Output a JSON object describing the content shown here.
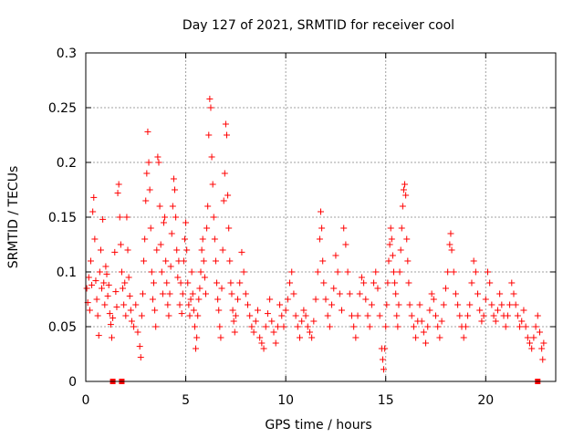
{
  "chart_data": {
    "type": "scatter",
    "title": "Day 127 of 2021, SRMTID for receiver cool",
    "xlabel": "GPS time / hours",
    "ylabel": "SRMTID / TECUs",
    "xlim": [
      0,
      23.5
    ],
    "ylim": [
      0,
      0.3
    ],
    "grid": true,
    "marker": "+",
    "color": "#ff0000",
    "x_ticks": [
      0,
      5,
      10,
      15,
      20
    ],
    "x_tick_labels": [
      "0",
      "5",
      "10",
      "15",
      "20"
    ],
    "y_ticks": [
      0,
      0.05,
      0.1,
      0.15,
      0.2,
      0.25,
      0.3
    ],
    "y_tick_labels": [
      "0",
      "0.05",
      "0.1",
      "0.15",
      "0.2",
      "0.25",
      "0.3"
    ],
    "zero_markers": [
      1.35,
      1.8,
      22.6
    ],
    "series": [
      {
        "name": "SRMTID",
        "points": [
          [
            0.05,
            0.085
          ],
          [
            0.1,
            0.072
          ],
          [
            0.15,
            0.095
          ],
          [
            0.2,
            0.065
          ],
          [
            0.25,
            0.11
          ],
          [
            0.3,
            0.088
          ],
          [
            0.35,
            0.155
          ],
          [
            0.4,
            0.168
          ],
          [
            0.45,
            0.13
          ],
          [
            0.5,
            0.092
          ],
          [
            0.55,
            0.075
          ],
          [
            0.6,
            0.06
          ],
          [
            0.65,
            0.042
          ],
          [
            0.7,
            0.1
          ],
          [
            0.75,
            0.12
          ],
          [
            0.8,
            0.085
          ],
          [
            0.85,
            0.148
          ],
          [
            0.9,
            0.09
          ],
          [
            0.95,
            0.07
          ],
          [
            1.0,
            0.105
          ],
          [
            1.05,
            0.098
          ],
          [
            1.1,
            0.078
          ],
          [
            1.15,
            0.088
          ],
          [
            1.2,
            0.062
          ],
          [
            1.25,
            0.052
          ],
          [
            1.3,
            0.04
          ],
          [
            1.35,
            0.058
          ],
          [
            1.45,
            0.118
          ],
          [
            1.5,
            0.082
          ],
          [
            1.55,
            0.068
          ],
          [
            1.6,
            0.172
          ],
          [
            1.65,
            0.18
          ],
          [
            1.7,
            0.15
          ],
          [
            1.75,
            0.125
          ],
          [
            1.8,
            0.1
          ],
          [
            1.85,
            0.085
          ],
          [
            1.9,
            0.07
          ],
          [
            1.95,
            0.09
          ],
          [
            2.0,
            0.06
          ],
          [
            2.05,
            0.15
          ],
          [
            2.1,
            0.12
          ],
          [
            2.15,
            0.095
          ],
          [
            2.2,
            0.078
          ],
          [
            2.25,
            0.065
          ],
          [
            2.3,
            0.055
          ],
          [
            2.4,
            0.05
          ],
          [
            2.5,
            0.07
          ],
          [
            2.6,
            0.045
          ],
          [
            2.7,
            0.032
          ],
          [
            2.75,
            0.022
          ],
          [
            2.8,
            0.06
          ],
          [
            2.85,
            0.08
          ],
          [
            2.9,
            0.11
          ],
          [
            2.95,
            0.13
          ],
          [
            3.0,
            0.165
          ],
          [
            3.05,
            0.19
          ],
          [
            3.1,
            0.228
          ],
          [
            3.15,
            0.2
          ],
          [
            3.2,
            0.175
          ],
          [
            3.25,
            0.14
          ],
          [
            3.3,
            0.1
          ],
          [
            3.35,
            0.075
          ],
          [
            3.4,
            0.09
          ],
          [
            3.45,
            0.065
          ],
          [
            3.5,
            0.05
          ],
          [
            3.55,
            0.12
          ],
          [
            3.6,
            0.205
          ],
          [
            3.65,
            0.2
          ],
          [
            3.7,
            0.16
          ],
          [
            3.75,
            0.125
          ],
          [
            3.8,
            0.1
          ],
          [
            3.85,
            0.08
          ],
          [
            3.9,
            0.145
          ],
          [
            3.95,
            0.15
          ],
          [
            4.0,
            0.11
          ],
          [
            4.05,
            0.09
          ],
          [
            4.1,
            0.07
          ],
          [
            4.15,
            0.06
          ],
          [
            4.2,
            0.08
          ],
          [
            4.25,
            0.105
          ],
          [
            4.3,
            0.135
          ],
          [
            4.35,
            0.16
          ],
          [
            4.4,
            0.185
          ],
          [
            4.45,
            0.175
          ],
          [
            4.5,
            0.15
          ],
          [
            4.55,
            0.12
          ],
          [
            4.6,
            0.095
          ],
          [
            4.65,
            0.11
          ],
          [
            4.7,
            0.07
          ],
          [
            4.75,
            0.09
          ],
          [
            4.8,
            0.062
          ],
          [
            4.85,
            0.08
          ],
          [
            4.9,
            0.11
          ],
          [
            4.95,
            0.13
          ],
          [
            5.0,
            0.145
          ],
          [
            5.05,
            0.12
          ],
          [
            5.1,
            0.09
          ],
          [
            5.15,
            0.07
          ],
          [
            5.2,
            0.06
          ],
          [
            5.25,
            0.075
          ],
          [
            5.3,
            0.1
          ],
          [
            5.35,
            0.08
          ],
          [
            5.4,
            0.065
          ],
          [
            5.45,
            0.05
          ],
          [
            5.5,
            0.03
          ],
          [
            5.55,
            0.04
          ],
          [
            5.6,
            0.06
          ],
          [
            5.65,
            0.075
          ],
          [
            5.7,
            0.085
          ],
          [
            5.75,
            0.1
          ],
          [
            5.8,
            0.12
          ],
          [
            5.85,
            0.13
          ],
          [
            5.9,
            0.11
          ],
          [
            5.95,
            0.095
          ],
          [
            6.0,
            0.08
          ],
          [
            6.05,
            0.14
          ],
          [
            6.1,
            0.16
          ],
          [
            6.15,
            0.225
          ],
          [
            6.2,
            0.258
          ],
          [
            6.25,
            0.25
          ],
          [
            6.3,
            0.205
          ],
          [
            6.35,
            0.18
          ],
          [
            6.4,
            0.15
          ],
          [
            6.45,
            0.13
          ],
          [
            6.5,
            0.11
          ],
          [
            6.55,
            0.09
          ],
          [
            6.6,
            0.075
          ],
          [
            6.65,
            0.065
          ],
          [
            6.7,
            0.05
          ],
          [
            6.75,
            0.04
          ],
          [
            6.8,
            0.085
          ],
          [
            6.85,
            0.12
          ],
          [
            6.9,
            0.165
          ],
          [
            6.95,
            0.19
          ],
          [
            7.0,
            0.235
          ],
          [
            7.05,
            0.225
          ],
          [
            7.1,
            0.17
          ],
          [
            7.15,
            0.14
          ],
          [
            7.2,
            0.11
          ],
          [
            7.25,
            0.09
          ],
          [
            7.3,
            0.08
          ],
          [
            7.35,
            0.065
          ],
          [
            7.4,
            0.055
          ],
          [
            7.45,
            0.045
          ],
          [
            7.5,
            0.06
          ],
          [
            7.6,
            0.075
          ],
          [
            7.7,
            0.09
          ],
          [
            7.8,
            0.118
          ],
          [
            7.9,
            0.1
          ],
          [
            8.0,
            0.08
          ],
          [
            8.1,
            0.07
          ],
          [
            8.2,
            0.06
          ],
          [
            8.3,
            0.05
          ],
          [
            8.4,
            0.045
          ],
          [
            8.5,
            0.055
          ],
          [
            8.6,
            0.065
          ],
          [
            8.7,
            0.04
          ],
          [
            8.8,
            0.035
          ],
          [
            8.9,
            0.03
          ],
          [
            9.0,
            0.05
          ],
          [
            9.1,
            0.062
          ],
          [
            9.2,
            0.075
          ],
          [
            9.3,
            0.055
          ],
          [
            9.4,
            0.045
          ],
          [
            9.5,
            0.035
          ],
          [
            9.6,
            0.05
          ],
          [
            9.7,
            0.07
          ],
          [
            9.8,
            0.06
          ],
          [
            9.9,
            0.05
          ],
          [
            10.0,
            0.065
          ],
          [
            10.1,
            0.075
          ],
          [
            10.2,
            0.09
          ],
          [
            10.3,
            0.1
          ],
          [
            10.4,
            0.08
          ],
          [
            10.5,
            0.06
          ],
          [
            10.6,
            0.05
          ],
          [
            10.7,
            0.04
          ],
          [
            10.8,
            0.055
          ],
          [
            10.9,
            0.065
          ],
          [
            11.0,
            0.06
          ],
          [
            11.1,
            0.05
          ],
          [
            11.2,
            0.045
          ],
          [
            11.3,
            0.04
          ],
          [
            11.4,
            0.055
          ],
          [
            11.5,
            0.075
          ],
          [
            11.6,
            0.1
          ],
          [
            11.7,
            0.13
          ],
          [
            11.75,
            0.155
          ],
          [
            11.8,
            0.14
          ],
          [
            11.85,
            0.11
          ],
          [
            11.9,
            0.09
          ],
          [
            12.0,
            0.075
          ],
          [
            12.1,
            0.06
          ],
          [
            12.2,
            0.05
          ],
          [
            12.3,
            0.07
          ],
          [
            12.4,
            0.085
          ],
          [
            12.5,
            0.115
          ],
          [
            12.6,
            0.1
          ],
          [
            12.7,
            0.08
          ],
          [
            12.8,
            0.065
          ],
          [
            12.9,
            0.14
          ],
          [
            13.0,
            0.125
          ],
          [
            13.1,
            0.1
          ],
          [
            13.2,
            0.08
          ],
          [
            13.3,
            0.06
          ],
          [
            13.4,
            0.05
          ],
          [
            13.5,
            0.04
          ],
          [
            13.6,
            0.06
          ],
          [
            13.7,
            0.08
          ],
          [
            13.8,
            0.095
          ],
          [
            13.9,
            0.09
          ],
          [
            14.0,
            0.075
          ],
          [
            14.1,
            0.06
          ],
          [
            14.2,
            0.05
          ],
          [
            14.3,
            0.07
          ],
          [
            14.4,
            0.09
          ],
          [
            14.5,
            0.1
          ],
          [
            14.6,
            0.085
          ],
          [
            14.7,
            0.06
          ],
          [
            14.8,
            0.03
          ],
          [
            14.85,
            0.02
          ],
          [
            14.9,
            0.011
          ],
          [
            14.95,
            0.03
          ],
          [
            15.0,
            0.05
          ],
          [
            15.05,
            0.07
          ],
          [
            15.1,
            0.09
          ],
          [
            15.15,
            0.11
          ],
          [
            15.2,
            0.125
          ],
          [
            15.25,
            0.14
          ],
          [
            15.3,
            0.13
          ],
          [
            15.35,
            0.115
          ],
          [
            15.4,
            0.1
          ],
          [
            15.45,
            0.09
          ],
          [
            15.5,
            0.08
          ],
          [
            15.55,
            0.06
          ],
          [
            15.6,
            0.05
          ],
          [
            15.65,
            0.07
          ],
          [
            15.7,
            0.1
          ],
          [
            15.75,
            0.12
          ],
          [
            15.8,
            0.14
          ],
          [
            15.85,
            0.16
          ],
          [
            15.9,
            0.175
          ],
          [
            15.95,
            0.18
          ],
          [
            16.0,
            0.17
          ],
          [
            16.05,
            0.13
          ],
          [
            16.1,
            0.11
          ],
          [
            16.15,
            0.09
          ],
          [
            16.2,
            0.07
          ],
          [
            16.3,
            0.06
          ],
          [
            16.4,
            0.05
          ],
          [
            16.5,
            0.04
          ],
          [
            16.6,
            0.055
          ],
          [
            16.7,
            0.07
          ],
          [
            16.8,
            0.055
          ],
          [
            16.9,
            0.045
          ],
          [
            17.0,
            0.035
          ],
          [
            17.1,
            0.05
          ],
          [
            17.2,
            0.065
          ],
          [
            17.3,
            0.08
          ],
          [
            17.4,
            0.075
          ],
          [
            17.5,
            0.06
          ],
          [
            17.6,
            0.05
          ],
          [
            17.7,
            0.04
          ],
          [
            17.8,
            0.055
          ],
          [
            17.9,
            0.07
          ],
          [
            18.0,
            0.085
          ],
          [
            18.1,
            0.1
          ],
          [
            18.2,
            0.125
          ],
          [
            18.25,
            0.135
          ],
          [
            18.3,
            0.12
          ],
          [
            18.4,
            0.1
          ],
          [
            18.5,
            0.08
          ],
          [
            18.6,
            0.07
          ],
          [
            18.7,
            0.06
          ],
          [
            18.8,
            0.05
          ],
          [
            18.9,
            0.04
          ],
          [
            19.0,
            0.05
          ],
          [
            19.1,
            0.06
          ],
          [
            19.2,
            0.07
          ],
          [
            19.3,
            0.09
          ],
          [
            19.4,
            0.11
          ],
          [
            19.5,
            0.1
          ],
          [
            19.6,
            0.08
          ],
          [
            19.7,
            0.065
          ],
          [
            19.8,
            0.055
          ],
          [
            19.9,
            0.06
          ],
          [
            20.0,
            0.075
          ],
          [
            20.1,
            0.1
          ],
          [
            20.2,
            0.09
          ],
          [
            20.3,
            0.07
          ],
          [
            20.4,
            0.06
          ],
          [
            20.5,
            0.055
          ],
          [
            20.6,
            0.065
          ],
          [
            20.7,
            0.08
          ],
          [
            20.8,
            0.07
          ],
          [
            20.9,
            0.06
          ],
          [
            21.0,
            0.05
          ],
          [
            21.1,
            0.06
          ],
          [
            21.2,
            0.07
          ],
          [
            21.3,
            0.09
          ],
          [
            21.4,
            0.08
          ],
          [
            21.5,
            0.07
          ],
          [
            21.6,
            0.06
          ],
          [
            21.7,
            0.05
          ],
          [
            21.8,
            0.055
          ],
          [
            21.9,
            0.065
          ],
          [
            22.0,
            0.05
          ],
          [
            22.1,
            0.04
          ],
          [
            22.2,
            0.035
          ],
          [
            22.3,
            0.03
          ],
          [
            22.4,
            0.04
          ],
          [
            22.5,
            0.05
          ],
          [
            22.6,
            0.06
          ],
          [
            22.7,
            0.045
          ],
          [
            22.8,
            0.03
          ],
          [
            22.85,
            0.02
          ],
          [
            22.9,
            0.035
          ]
        ]
      }
    ]
  }
}
